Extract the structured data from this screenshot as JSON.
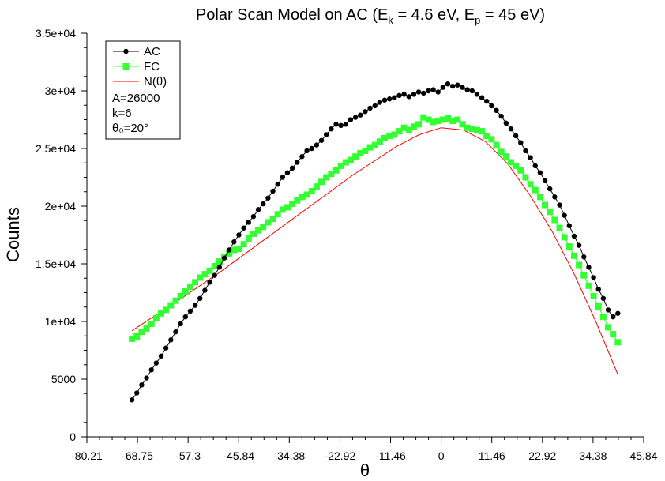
{
  "chart_data": {
    "type": "line",
    "title": {
      "prefix": "Polar Scan Model on AC (E",
      "sub1": "k",
      "mid": " = 4.6 eV, E",
      "sub2": "p",
      "suffix": " = 45 eV)"
    },
    "xlabel": "θ",
    "ylabel": "Counts",
    "xlim": [
      -80.21,
      45.84
    ],
    "ylim": [
      0,
      35000
    ],
    "x_ticks": [
      -80.21,
      -68.75,
      -57.3,
      -45.84,
      -34.38,
      -22.92,
      -11.46,
      0,
      11.46,
      22.92,
      34.38,
      45.84
    ],
    "x_tick_labels": [
      "-80.21",
      "-68.75",
      "-57.3",
      "-45.84",
      "-34.38",
      "-22.92",
      "-11.46",
      "0",
      "11.46",
      "22.92",
      "34.38",
      "45.84"
    ],
    "y_ticks": [
      0,
      5000,
      10000,
      15000,
      20000,
      25000,
      30000,
      35000
    ],
    "y_tick_labels": [
      "0",
      "5000",
      "1e+04",
      "1.5e+04",
      "2e+04",
      "2.5e+04",
      "3e+04",
      "3.5e+04"
    ],
    "grid": false,
    "legend_position": "top-left",
    "series": [
      {
        "name": "AC",
        "color": "#000000",
        "marker": "circle",
        "x": [
          -70,
          -68.9,
          -67.8,
          -66.7,
          -65.6,
          -64.5,
          -63.4,
          -62.3,
          -61.2,
          -60.1,
          -59.0,
          -57.9,
          -56.8,
          -55.7,
          -54.6,
          -53.5,
          -52.4,
          -51.3,
          -50.2,
          -49.1,
          -48.0,
          -46.9,
          -45.8,
          -44.7,
          -43.6,
          -42.5,
          -41.4,
          -40.3,
          -39.2,
          -38.1,
          -37.0,
          -35.9,
          -34.8,
          -33.7,
          -32.6,
          -31.5,
          -30.4,
          -29.3,
          -28.2,
          -27.1,
          -26.0,
          -24.9,
          -23.8,
          -22.7,
          -21.6,
          -20.5,
          -19.4,
          -18.3,
          -17.2,
          -16.1,
          -15.0,
          -13.9,
          -12.8,
          -11.7,
          -10.6,
          -9.5,
          -8.4,
          -7.3,
          -6.2,
          -5.1,
          -4.0,
          -2.9,
          -1.8,
          -0.7,
          0.4,
          1.5,
          2.6,
          3.7,
          4.8,
          5.9,
          7.0,
          8.1,
          9.2,
          10.3,
          11.4,
          12.5,
          13.6,
          14.7,
          15.8,
          16.9,
          18.0,
          19.1,
          20.2,
          21.3,
          22.4,
          23.5,
          24.6,
          25.7,
          26.8,
          27.9,
          29.0,
          30.1,
          31.2,
          32.3,
          33.4,
          34.5,
          35.6,
          36.7,
          37.8,
          38.9,
          40.0
        ],
        "y": [
          3200,
          3800,
          4500,
          5100,
          5800,
          6400,
          7000,
          7700,
          8400,
          9100,
          9800,
          10400,
          10900,
          11400,
          12000,
          12700,
          13400,
          14000,
          14700,
          15500,
          16200,
          16900,
          17500,
          18100,
          18600,
          19100,
          19700,
          20200,
          20700,
          21300,
          21900,
          22500,
          22900,
          23300,
          23800,
          24300,
          24800,
          25000,
          25300,
          25700,
          26200,
          26700,
          27100,
          27000,
          27100,
          27500,
          27700,
          27900,
          28200,
          28500,
          28700,
          29000,
          29200,
          29300,
          29400,
          29600,
          29700,
          29500,
          29700,
          29900,
          29800,
          30000,
          30100,
          29900,
          30300,
          30600,
          30400,
          30500,
          30300,
          30100,
          30000,
          29700,
          29400,
          29100,
          28700,
          28300,
          27800,
          27200,
          26700,
          26100,
          25500,
          24800,
          24200,
          23500,
          22900,
          22200,
          21500,
          20800,
          20100,
          19200,
          18300,
          17400,
          16600,
          15600,
          14700,
          13800,
          12800,
          12000,
          11000,
          10400,
          10700
        ]
      },
      {
        "name": "FC",
        "color": "#33ff33",
        "marker": "square",
        "x": [
          -70,
          -68.9,
          -67.8,
          -66.7,
          -65.6,
          -64.5,
          -63.4,
          -62.3,
          -61.2,
          -60.1,
          -59.0,
          -57.9,
          -56.8,
          -55.7,
          -54.6,
          -53.5,
          -52.4,
          -51.3,
          -50.2,
          -49.1,
          -48.0,
          -46.9,
          -45.8,
          -44.7,
          -43.6,
          -42.5,
          -41.4,
          -40.3,
          -39.2,
          -38.1,
          -37.0,
          -35.9,
          -34.8,
          -33.7,
          -32.6,
          -31.5,
          -30.4,
          -29.3,
          -28.2,
          -27.1,
          -26.0,
          -24.9,
          -23.8,
          -22.7,
          -21.6,
          -20.5,
          -19.4,
          -18.3,
          -17.2,
          -16.1,
          -15.0,
          -13.9,
          -12.8,
          -11.7,
          -10.6,
          -9.5,
          -8.4,
          -7.3,
          -6.2,
          -5.1,
          -4.0,
          -2.9,
          -1.8,
          -0.7,
          0.4,
          1.5,
          2.6,
          3.7,
          4.8,
          5.9,
          7.0,
          8.1,
          9.2,
          10.3,
          11.4,
          12.5,
          13.6,
          14.7,
          15.8,
          16.9,
          18.0,
          19.1,
          20.2,
          21.3,
          22.4,
          23.5,
          24.6,
          25.7,
          26.8,
          27.9,
          29.0,
          30.1,
          31.2,
          32.3,
          33.4,
          34.5,
          35.6,
          36.7,
          37.8,
          38.9,
          40.0
        ],
        "y": [
          8500,
          8700,
          9100,
          9400,
          9800,
          10300,
          10700,
          11000,
          11400,
          11800,
          12200,
          12600,
          13000,
          13400,
          13800,
          14100,
          14400,
          14800,
          15200,
          15600,
          15900,
          16200,
          16300,
          16700,
          17200,
          17600,
          17900,
          18200,
          18600,
          18900,
          19300,
          19700,
          19900,
          20200,
          20500,
          20800,
          21000,
          21300,
          21700,
          22100,
          22500,
          22800,
          23100,
          23500,
          23800,
          24000,
          24300,
          24600,
          24800,
          25100,
          25300,
          25600,
          25900,
          26100,
          26200,
          26500,
          26800,
          26600,
          26900,
          27100,
          27700,
          27500,
          27300,
          27400,
          27500,
          27600,
          27400,
          27500,
          27100,
          26800,
          26700,
          26600,
          26500,
          26100,
          25800,
          25300,
          24700,
          24300,
          23800,
          23500,
          23100,
          22500,
          21900,
          21400,
          20800,
          20100,
          19500,
          18800,
          18100,
          17300,
          16500,
          15700,
          14900,
          14000,
          13100,
          12200,
          11300,
          10400,
          9500,
          8900,
          8200
        ]
      },
      {
        "name": "N(θ)",
        "color": "#ff0000",
        "marker": "none",
        "x": [
          -70,
          -60,
          -50,
          -40,
          -30,
          -20,
          -10,
          -5,
          0,
          5,
          10,
          15,
          20,
          25,
          30,
          35,
          40
        ],
        "y": [
          9200,
          11700,
          14300,
          17100,
          19900,
          22700,
          25200,
          26200,
          26800,
          26600,
          25600,
          23700,
          21000,
          17900,
          14200,
          10000,
          5400
        ]
      }
    ],
    "legend_params": [
      "A=26000",
      "k=6",
      "θ₀=20°"
    ]
  }
}
